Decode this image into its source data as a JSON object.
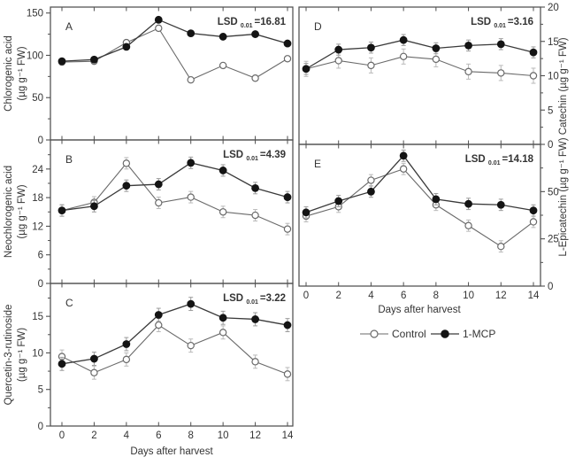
{
  "figure": {
    "x_axis_title": "Days after harvest",
    "x_ticks": [
      0,
      2,
      4,
      6,
      8,
      10,
      12,
      14
    ],
    "right_axis_title": "L-Epicatechin (µg g⁻¹ FW) Catechin (µg g⁻¹ FW)",
    "legend": {
      "position": "below-right-column",
      "items": [
        {
          "label": "Control",
          "marker": "open-circle"
        },
        {
          "label": "1-MCP",
          "marker": "filled-circle"
        }
      ]
    },
    "colors": {
      "control_line": "#6a6a6a",
      "control_marker_fill": "#ffffff",
      "control_error": "#b9b9b9",
      "mcp_line": "#3a3a3a",
      "mcp_marker_fill": "#141414",
      "mcp_error": "#9b9b9b",
      "axis": "#4f4f4f",
      "text": "#343434"
    }
  },
  "chart_data": [
    {
      "panel": "A",
      "type": "line",
      "ylabel_lines": [
        "Chlorogenic acid",
        "(µg g⁻¹ FW)"
      ],
      "lsd": {
        "prefix": "LSD",
        "sub": "0.01",
        "value": "=16.81"
      },
      "x": [
        0,
        2,
        4,
        6,
        8,
        10,
        12,
        14
      ],
      "series": [
        {
          "name": "Control",
          "values": [
            92,
            93,
            115,
            132,
            71,
            88,
            73,
            96
          ],
          "err": 3
        },
        {
          "name": "1-MCP",
          "values": [
            93,
            95,
            110,
            142,
            126,
            122,
            125,
            114
          ],
          "err": 3
        }
      ],
      "ylim": [
        0,
        157
      ],
      "yticks": [
        0,
        50,
        100,
        150
      ],
      "yticks_minor": [
        25,
        75,
        125
      ],
      "y_side": "left",
      "x_tick_labels_shown": false
    },
    {
      "panel": "B",
      "type": "line",
      "ylabel_lines": [
        "Neochlorogenic acid",
        "(µg g⁻¹ FW)"
      ],
      "lsd": {
        "prefix": "LSD",
        "sub": "0.01",
        "value": "=4.39"
      },
      "x": [
        0,
        2,
        4,
        6,
        8,
        10,
        12,
        14
      ],
      "series": [
        {
          "name": "Control",
          "values": [
            15.3,
            17.0,
            25.2,
            16.9,
            18.1,
            15.0,
            14.3,
            11.4
          ],
          "err": 1.2
        },
        {
          "name": "1-MCP",
          "values": [
            15.3,
            16.2,
            20.5,
            20.8,
            25.3,
            23.7,
            20.0,
            18.1
          ],
          "err": 1.2
        }
      ],
      "ylim": [
        0,
        30.1
      ],
      "yticks": [
        0,
        6,
        12,
        18,
        24
      ],
      "yticks_minor": [
        3,
        9,
        15,
        21,
        27
      ],
      "y_side": "left",
      "x_tick_labels_shown": false
    },
    {
      "panel": "C",
      "type": "line",
      "ylabel_lines": [
        "Quercetin-3-rutinoside",
        "(µg g⁻¹ FW)"
      ],
      "xlabel": "Days after harvest",
      "lsd": {
        "prefix": "LSD",
        "sub": "0.01",
        "value": "=3.22"
      },
      "x": [
        0,
        2,
        4,
        6,
        8,
        10,
        12,
        14
      ],
      "series": [
        {
          "name": "Control",
          "values": [
            9.5,
            7.3,
            9.1,
            13.8,
            11.0,
            12.8,
            8.8,
            7.1
          ],
          "err": 0.9
        },
        {
          "name": "1-MCP",
          "values": [
            8.5,
            9.2,
            11.2,
            15.2,
            16.7,
            14.8,
            14.6,
            13.8
          ],
          "err": 0.9
        }
      ],
      "ylim": [
        0,
        19.5
      ],
      "yticks": [
        0,
        5,
        10,
        15
      ],
      "yticks_minor": [
        2.5,
        7.5,
        12.5,
        17.5
      ],
      "y_side": "left",
      "x_tick_labels_shown": true
    },
    {
      "panel": "D",
      "type": "line",
      "ylabel": "Catechin (µg g⁻¹ FW)",
      "lsd": {
        "prefix": "LSD",
        "sub": "0.01",
        "value": "=3.16"
      },
      "x": [
        0,
        2,
        4,
        6,
        8,
        10,
        12,
        14
      ],
      "series": [
        {
          "name": "Control",
          "values": [
            11.0,
            12.2,
            11.5,
            12.8,
            12.4,
            10.6,
            10.4,
            10.0
          ],
          "err": 1.1
        },
        {
          "name": "1-MCP",
          "values": [
            11.0,
            13.8,
            14.1,
            15.2,
            14.0,
            14.4,
            14.6,
            13.4
          ],
          "err": 0.8
        }
      ],
      "ylim": [
        0,
        20
      ],
      "yticks": [
        0,
        5,
        10,
        15,
        20
      ],
      "yticks_minor": [
        2.5,
        7.5,
        12.5,
        17.5
      ],
      "y_side": "right",
      "x_tick_labels_shown": false
    },
    {
      "panel": "E",
      "type": "line",
      "ylabel": "L-Epicatechin (µg g⁻¹ FW)",
      "xlabel": "Days after harvest",
      "lsd": {
        "prefix": "LSD",
        "sub": "0.01",
        "value": "=14.18"
      },
      "x": [
        0,
        2,
        4,
        6,
        8,
        10,
        12,
        14
      ],
      "series": [
        {
          "name": "Control",
          "values": [
            37,
            42,
            56,
            62,
            43,
            32,
            21,
            34
          ],
          "err": 3
        },
        {
          "name": "1-MCP",
          "values": [
            39,
            45,
            50,
            69,
            46,
            43.5,
            43,
            40
          ],
          "err": 3
        }
      ],
      "ylim": [
        0,
        75
      ],
      "yticks": [
        0,
        25,
        50
      ],
      "yticks_minor": [
        12.5,
        37.5,
        62.5
      ],
      "y_side": "right",
      "x_tick_labels_shown": true
    }
  ]
}
